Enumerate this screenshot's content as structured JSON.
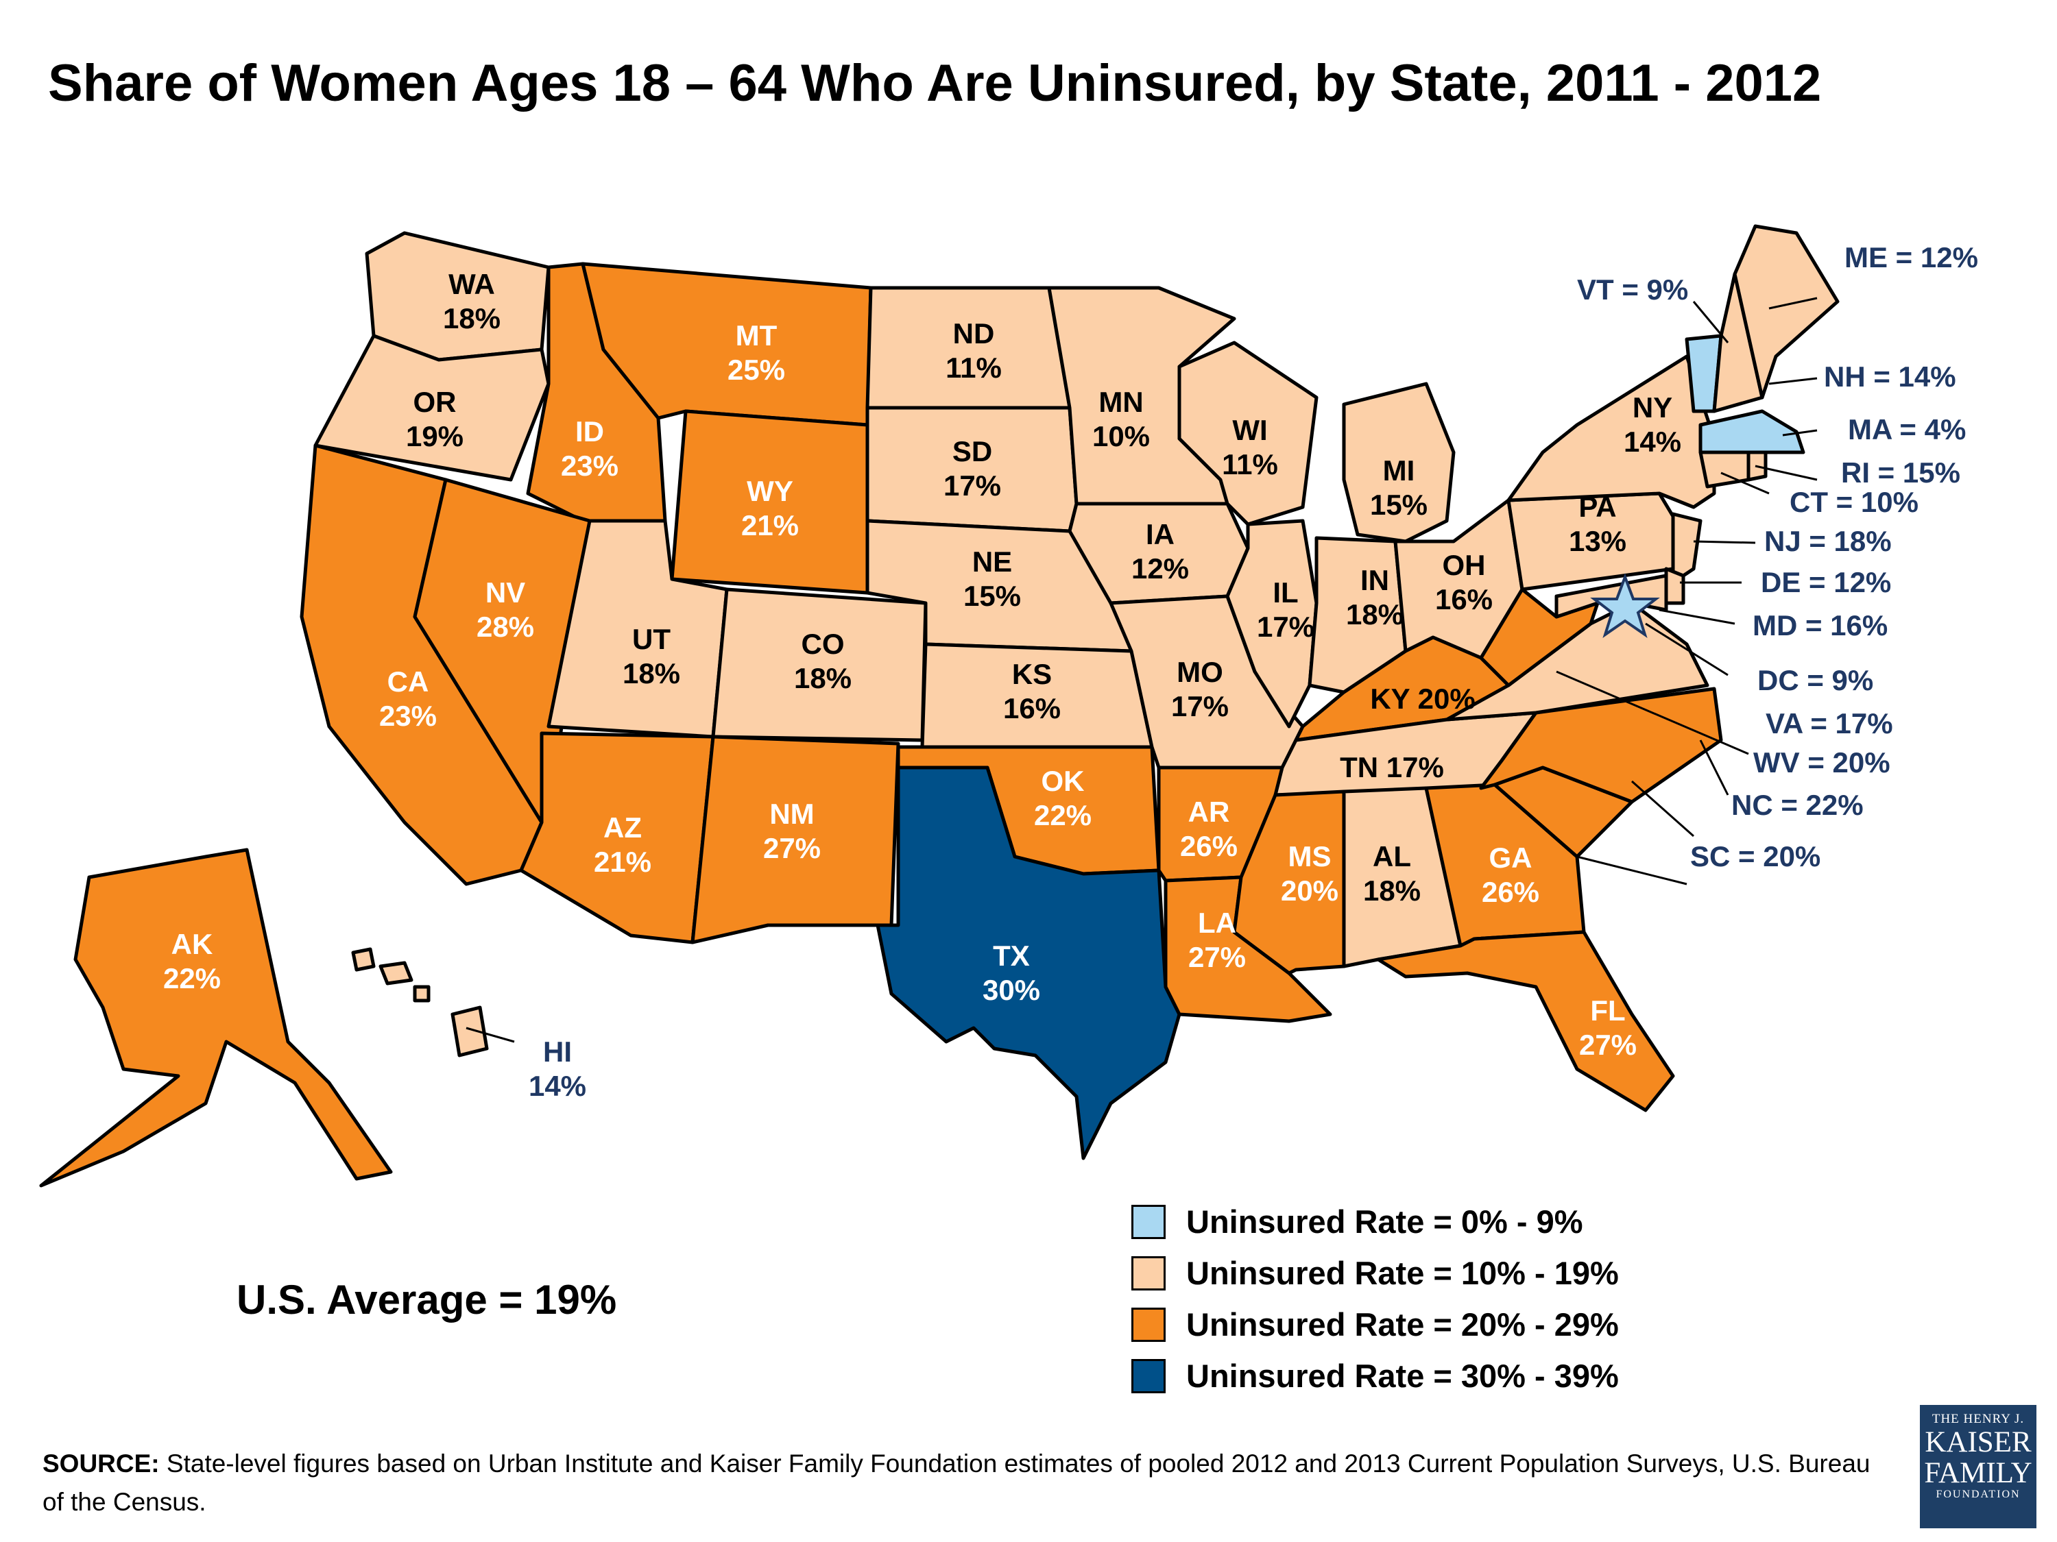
{
  "title": "Share of Women Ages 18 – 64 Who Are Uninsured, by State, 2011 - 2012",
  "colors": {
    "range_0_9": "#a9d8f2",
    "range_10_19": "#fcd0a8",
    "range_20_29": "#f5891f",
    "range_30_39": "#005089",
    "callout_text": "#1f3864",
    "outline": "#000000"
  },
  "states": [
    {
      "abbr": "WA",
      "value": "18%"
    },
    {
      "abbr": "OR",
      "value": "19%"
    },
    {
      "abbr": "CA",
      "value": "23%"
    },
    {
      "abbr": "ID",
      "value": "23%"
    },
    {
      "abbr": "NV",
      "value": "28%"
    },
    {
      "abbr": "MT",
      "value": "25%"
    },
    {
      "abbr": "WY",
      "value": "21%"
    },
    {
      "abbr": "UT",
      "value": "18%"
    },
    {
      "abbr": "CO",
      "value": "18%"
    },
    {
      "abbr": "AZ",
      "value": "21%"
    },
    {
      "abbr": "NM",
      "value": "27%"
    },
    {
      "abbr": "ND",
      "value": "11%"
    },
    {
      "abbr": "SD",
      "value": "17%"
    },
    {
      "abbr": "NE",
      "value": "15%"
    },
    {
      "abbr": "KS",
      "value": "16%"
    },
    {
      "abbr": "OK",
      "value": "22%"
    },
    {
      "abbr": "TX",
      "value": "30%"
    },
    {
      "abbr": "MN",
      "value": "10%"
    },
    {
      "abbr": "IA",
      "value": "12%"
    },
    {
      "abbr": "MO",
      "value": "17%"
    },
    {
      "abbr": "AR",
      "value": "26%"
    },
    {
      "abbr": "LA",
      "value": "27%"
    },
    {
      "abbr": "WI",
      "value": "11%"
    },
    {
      "abbr": "IL",
      "value": "17%"
    },
    {
      "abbr": "MI",
      "value": "15%"
    },
    {
      "abbr": "IN",
      "value": "18%"
    },
    {
      "abbr": "OH",
      "value": "16%"
    },
    {
      "abbr": "KY",
      "value": "20%"
    },
    {
      "abbr": "TN",
      "value": "17%"
    },
    {
      "abbr": "MS",
      "value": "20%"
    },
    {
      "abbr": "AL",
      "value": "18%"
    },
    {
      "abbr": "GA",
      "value": "26%"
    },
    {
      "abbr": "FL",
      "value": "27%"
    },
    {
      "abbr": "PA",
      "value": "13%"
    },
    {
      "abbr": "NY",
      "value": "14%"
    },
    {
      "abbr": "AK",
      "value": "22%"
    },
    {
      "abbr": "HI",
      "value": "14%"
    }
  ],
  "callouts": [
    {
      "text": "ME = 12%"
    },
    {
      "text": "VT = 9%"
    },
    {
      "text": "NH = 14%"
    },
    {
      "text": "MA = 4%"
    },
    {
      "text": "RI = 15%"
    },
    {
      "text": "CT = 10%"
    },
    {
      "text": "NJ = 18%"
    },
    {
      "text": "DE = 12%"
    },
    {
      "text": "MD = 16%"
    },
    {
      "text": "DC = 9%"
    },
    {
      "text": "VA = 17%"
    },
    {
      "text": "WV = 20%"
    },
    {
      "text": "NC = 22%"
    },
    {
      "text": "SC = 20%"
    }
  ],
  "legend": [
    {
      "label": "Uninsured Rate = 0% - 9%",
      "color": "#a9d8f2"
    },
    {
      "label": "Uninsured Rate = 10% - 19%",
      "color": "#fcd0a8"
    },
    {
      "label": "Uninsured Rate = 20% - 29%",
      "color": "#f5891f"
    },
    {
      "label": "Uninsured Rate = 30% - 39%",
      "color": "#005089"
    }
  ],
  "us_average": "U.S. Average = 19%",
  "source": {
    "label": "SOURCE:",
    "text": "State-level figures based on Urban Institute and Kaiser Family Foundation estimates of pooled 2012 and 2013 Current Population Surveys, U.S. Bureau of the Census."
  },
  "logo": {
    "line1": "THE HENRY J.",
    "line2": "KAISER",
    "line3": "FAMILY",
    "line4": "FOUNDATION"
  }
}
